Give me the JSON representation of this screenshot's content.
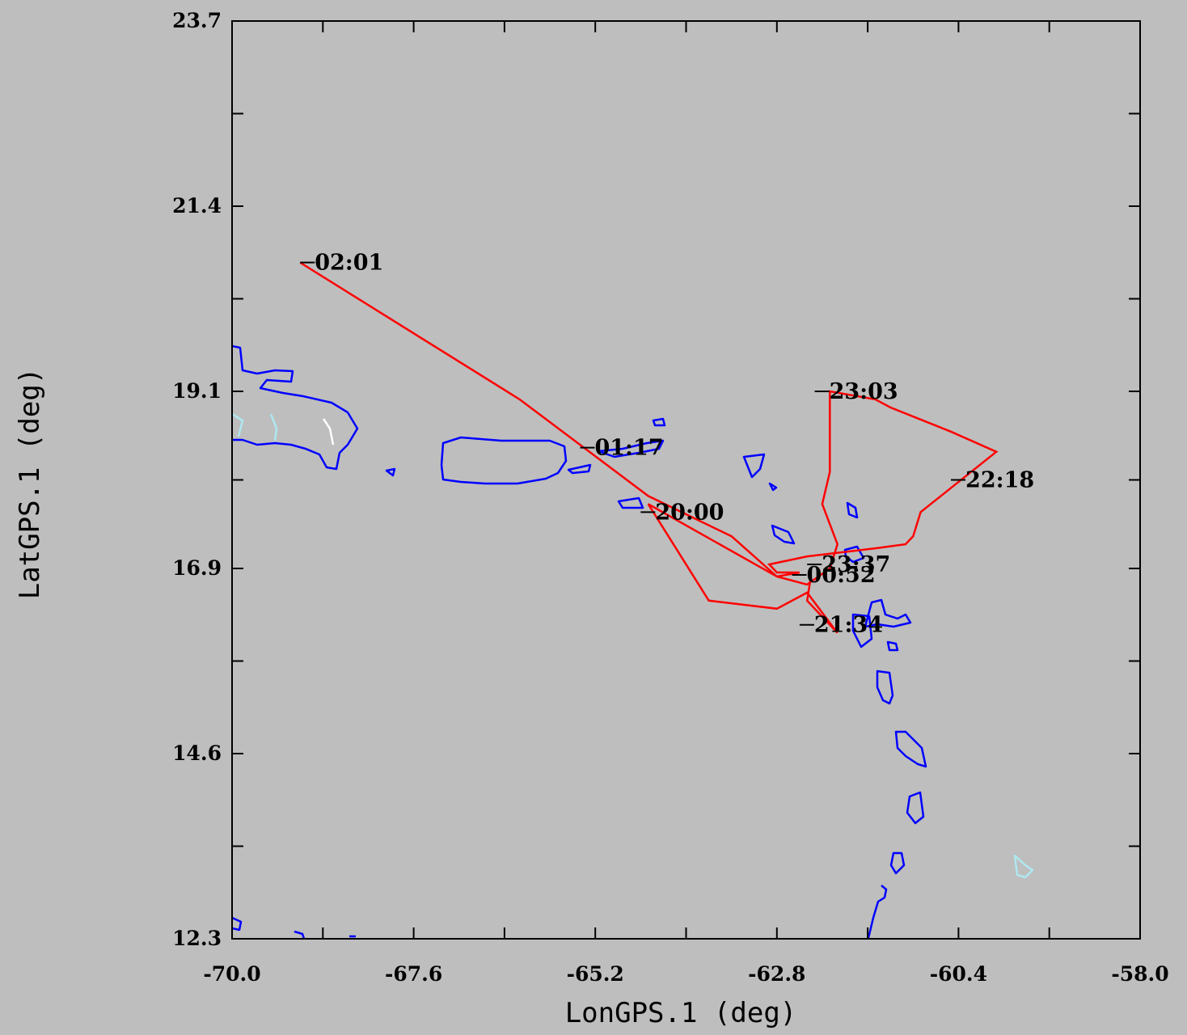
{
  "chart_data": {
    "type": "line",
    "xlabel": "LonGPS.1 (deg)",
    "ylabel": "LatGPS.1 (deg)",
    "xlim": [
      -70.0,
      -58.0
    ],
    "ylim": [
      12.3,
      23.7
    ],
    "x_ticks": [
      "-70.0",
      "-67.6",
      "-65.2",
      "-62.8",
      "-60.4",
      "-58.0"
    ],
    "y_ticks": [
      "23.7",
      "21.4",
      "19.1",
      "16.9",
      "14.6",
      "12.3"
    ],
    "grid": false,
    "colors": {
      "track": "#ff0000",
      "coast": "#0000ff",
      "coast_alt": "#aee8f0",
      "background": "#bebebe",
      "axes": "#000000"
    },
    "series": [
      {
        "x": [
          -69.1,
          -66.2,
          -64.5,
          -63.4,
          -62.8,
          -62.4,
          -62.1,
          -62.0,
          -62.2,
          -62.1,
          -62.1,
          -61.5,
          -61.5,
          -61.3,
          -60.5,
          -59.9,
          -60.9,
          -61.0,
          -61.1,
          -61.5,
          -62.4,
          -62.9,
          -62.8,
          -62.5,
          -62.8,
          -64.5,
          -63.7,
          -62.8,
          -62.4,
          -62.0,
          -62.4,
          -62.35
        ],
        "y": [
          20.7,
          19.0,
          17.8,
          17.3,
          16.8,
          16.7,
          16.9,
          17.2,
          17.7,
          18.1,
          19.1,
          19.0,
          19.0,
          18.9,
          18.6,
          18.35,
          17.6,
          17.3,
          17.2,
          17.15,
          17.05,
          16.95,
          16.85,
          16.85,
          16.8,
          17.7,
          16.5,
          16.4,
          16.6,
          16.1,
          16.5,
          16.8
        ],
        "labels": [
          {
            "text": "02:01",
            "lon": -69.1,
            "lat": 20.7
          },
          {
            "text": "01:17",
            "lon": -65.4,
            "lat": 18.4
          },
          {
            "text": "20:00",
            "lon": -64.6,
            "lat": 17.6
          },
          {
            "text": "23:03",
            "lon": -62.3,
            "lat": 19.1
          },
          {
            "text": "22:18",
            "lon": -60.5,
            "lat": 18.0
          },
          {
            "text": "23:37",
            "lon": -62.4,
            "lat": 16.95
          },
          {
            "text": "00:52",
            "lon": -62.6,
            "lat": 16.82
          },
          {
            "text": "21:34",
            "lon": -62.5,
            "lat": 16.2
          }
        ]
      }
    ]
  }
}
